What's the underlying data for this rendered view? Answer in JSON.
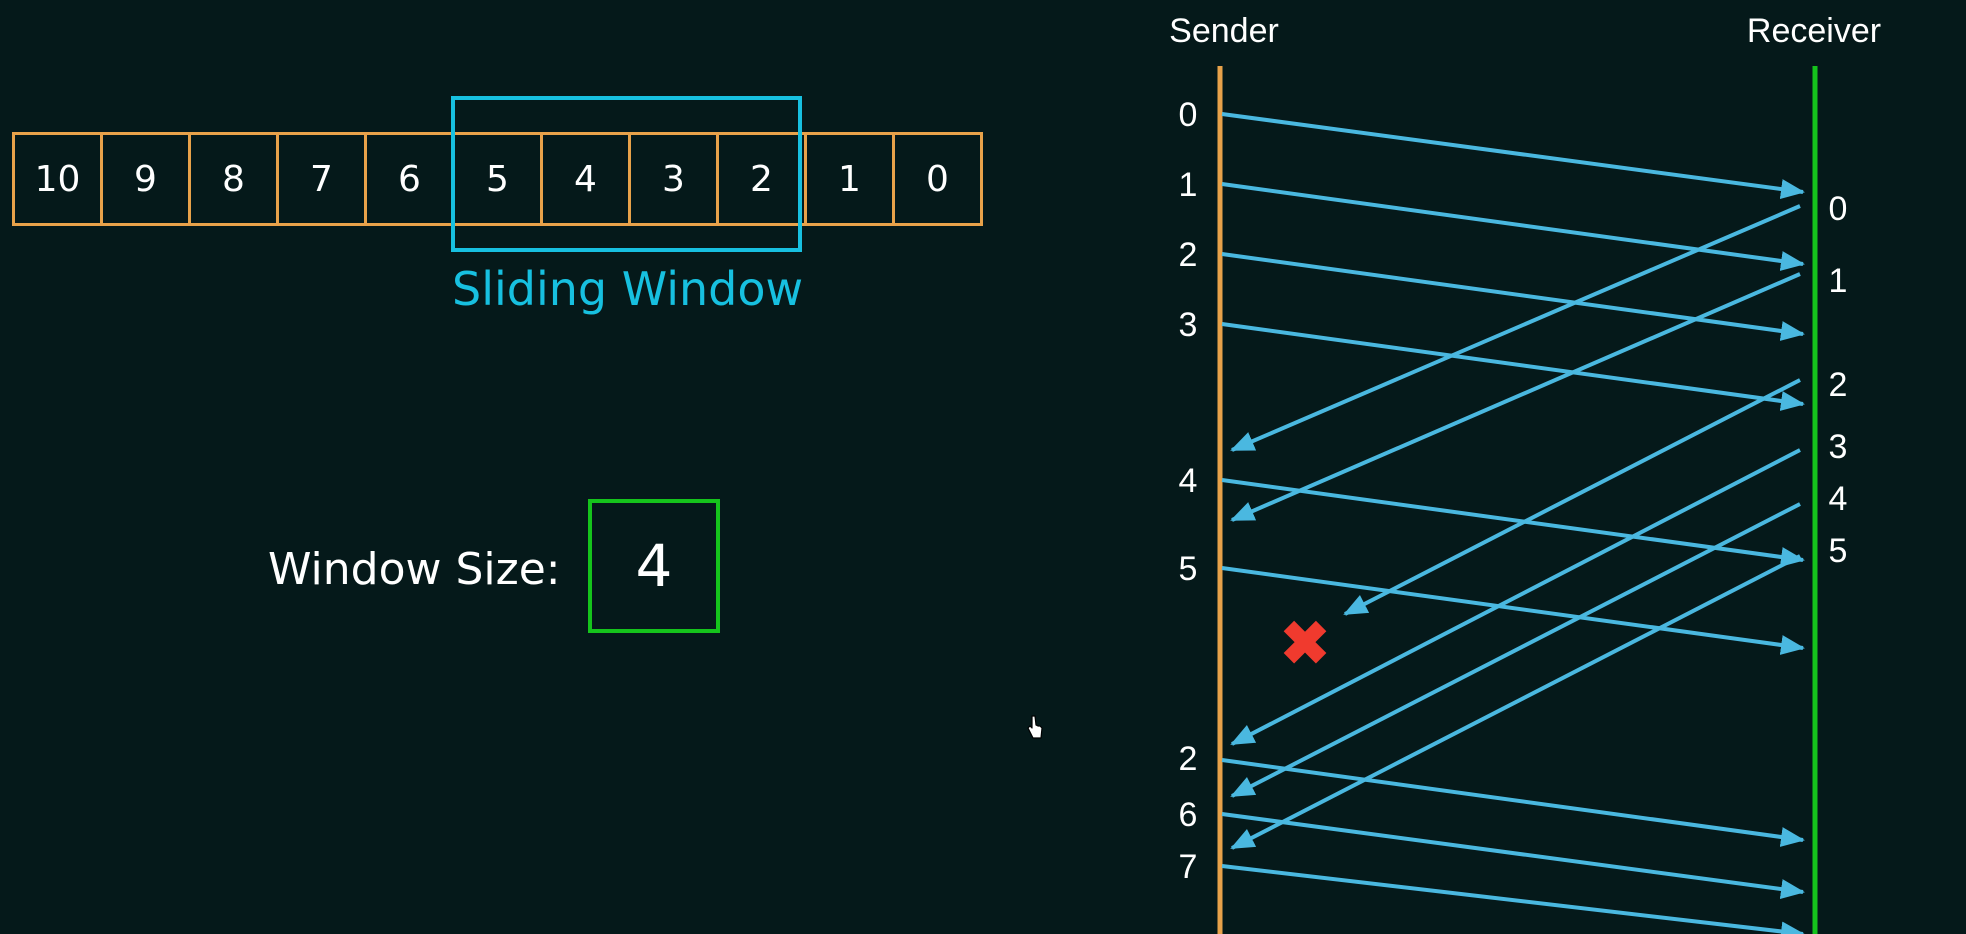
{
  "buffer": {
    "cells": [
      "10",
      "9",
      "8",
      "7",
      "6",
      "5",
      "4",
      "3",
      "2",
      "1",
      "0"
    ]
  },
  "window": {
    "label": "Sliding Window"
  },
  "window_size": {
    "label": "Window Size:",
    "value": "4"
  },
  "sequence": {
    "sender_label": "Sender",
    "receiver_label": "Receiver",
    "sender_numbers": [
      "0",
      "1",
      "2",
      "3",
      "4",
      "5",
      "2",
      "6",
      "7"
    ],
    "receiver_numbers": [
      "0",
      "1",
      "2",
      "3",
      "4",
      "5"
    ],
    "lost_marker": "✖"
  },
  "colors": {
    "background": "#05191a",
    "buffer_border": "#e8a24a",
    "window_frame": "#17c0e0",
    "size_box": "#15c41c",
    "sender_line": "#e8a24a",
    "receiver_line": "#15c41c",
    "arrow": "#4ab8e0",
    "loss_marker": "#f03a2e"
  }
}
